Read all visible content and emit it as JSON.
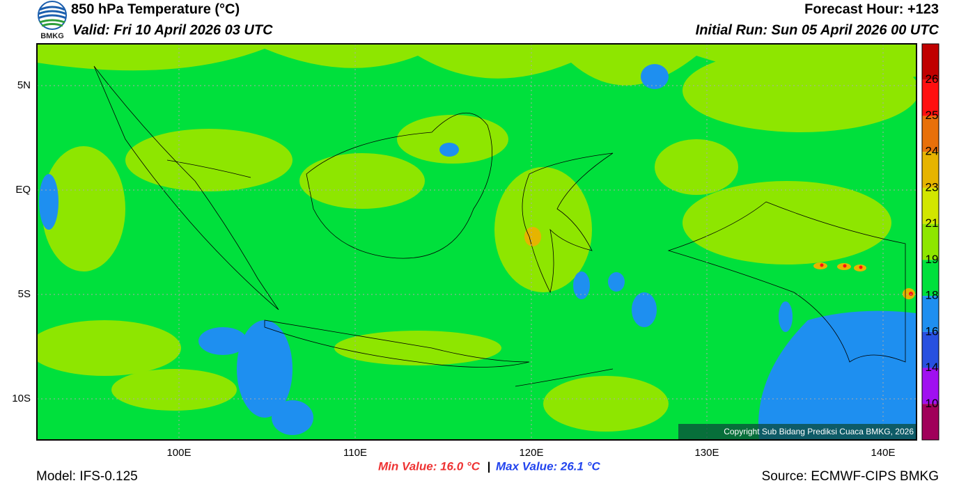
{
  "header": {
    "title": "850 hPa Temperature (°C)",
    "valid": "Valid: Fri 10 April 2026 03 UTC",
    "forecast_hour": "Forecast Hour: +123",
    "initial_run": "Initial Run: Sun 05 April 2026 00 UTC",
    "logo_text": "BMKG"
  },
  "map": {
    "lat_labels": [
      "5N",
      "EQ",
      "5S",
      "10S"
    ],
    "lon_labels": [
      "100E",
      "110E",
      "120E",
      "130E",
      "140E"
    ],
    "copyright": "Copyright Sub Bidang Prediksi Cuaca BMKG, 2026"
  },
  "colorbar": {
    "levels": [
      26,
      25,
      24,
      23,
      21,
      19,
      18,
      16,
      14,
      10
    ],
    "colors": [
      "#c00000",
      "#ff1010",
      "#e8700a",
      "#e6b400",
      "#d2e600",
      "#8ee600",
      "#00e03c",
      "#1e8ff0",
      "#2850e0",
      "#a010f0",
      "#a0005a"
    ]
  },
  "footer": {
    "model": "Model: IFS-0.125",
    "min_value": "Min Value: 16.0 °C",
    "separator": "|",
    "max_value": "Max Value: 26.1 °C",
    "source": "Source: ECMWF-CIPS BMKG"
  }
}
